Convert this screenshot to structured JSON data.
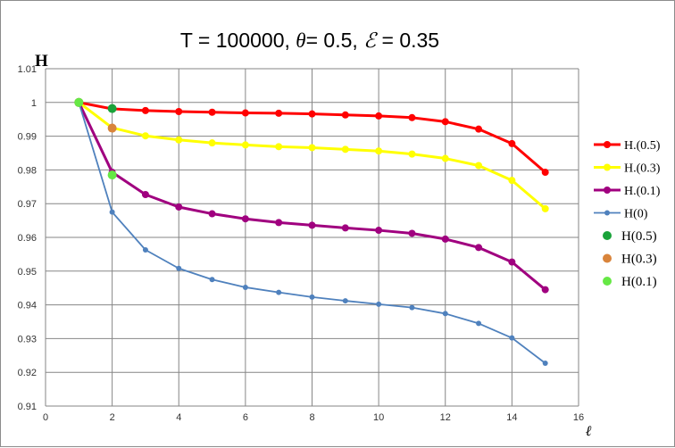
{
  "chart_data": {
    "type": "line",
    "title_parts": {
      "lead": "T = 100000,  ",
      "theta_sym": "θ",
      "theta_val": "= 0.5,  ",
      "eps_sym": "ℰ",
      "eps_val": " = 0.35"
    },
    "ylabel": "H",
    "xlabel": "ℓ",
    "xlim": [
      0,
      16
    ],
    "ylim": [
      0.91,
      1.01
    ],
    "x_ticks": [
      0,
      2,
      4,
      6,
      8,
      10,
      12,
      14,
      16
    ],
    "y_ticks": [
      0.91,
      0.92,
      0.93,
      0.94,
      0.95,
      0.96,
      0.97,
      0.98,
      0.99,
      1,
      1.01
    ],
    "grid": true,
    "legend_position": "right",
    "series": [
      {
        "name": "H.(0.5)",
        "color": "#ff0000",
        "kind": "line",
        "x": [
          1,
          2,
          3,
          4,
          5,
          6,
          7,
          8,
          9,
          10,
          11,
          12,
          13,
          14,
          15
        ],
        "y": [
          1.0,
          0.9981,
          0.9976,
          0.9973,
          0.9971,
          0.9969,
          0.9968,
          0.9966,
          0.9963,
          0.996,
          0.9955,
          0.9943,
          0.9921,
          0.9878,
          0.9793
        ]
      },
      {
        "name": "H.(0.3)",
        "color": "#ffff00",
        "kind": "line",
        "x": [
          1,
          2,
          3,
          4,
          5,
          6,
          7,
          8,
          9,
          10,
          11,
          12,
          13,
          14,
          15
        ],
        "y": [
          1.0,
          0.9925,
          0.9901,
          0.9889,
          0.988,
          0.9874,
          0.9869,
          0.9866,
          0.9861,
          0.9856,
          0.9847,
          0.9834,
          0.9813,
          0.9769,
          0.9685
        ]
      },
      {
        "name": "H.(0.1)",
        "color": "#a0007f",
        "kind": "line",
        "x": [
          1,
          2,
          3,
          4,
          5,
          6,
          7,
          8,
          9,
          10,
          11,
          12,
          13,
          14,
          15
        ],
        "y": [
          1.0,
          0.9793,
          0.9727,
          0.969,
          0.967,
          0.9655,
          0.9644,
          0.9636,
          0.9628,
          0.9621,
          0.9612,
          0.9595,
          0.957,
          0.9527,
          0.9445
        ]
      },
      {
        "name": "H(0)",
        "color": "#4f81bd",
        "kind": "line",
        "x": [
          1,
          2,
          3,
          4,
          5,
          6,
          7,
          8,
          9,
          10,
          11,
          12,
          13,
          14,
          15
        ],
        "y": [
          1.0,
          0.9675,
          0.9563,
          0.9508,
          0.9475,
          0.9452,
          0.9437,
          0.9423,
          0.9412,
          0.9402,
          0.9392,
          0.9374,
          0.9345,
          0.9302,
          0.9227
        ]
      },
      {
        "name": "H(0.5)",
        "color": "#1aa33a",
        "kind": "point",
        "x": [
          1,
          2
        ],
        "y": [
          1.0,
          0.9982
        ]
      },
      {
        "name": "H(0.3)",
        "color": "#d9843b",
        "kind": "point",
        "x": [
          1,
          2
        ],
        "y": [
          1.0,
          0.9924
        ]
      },
      {
        "name": "H(0.1)",
        "color": "#66e845",
        "kind": "point",
        "x": [
          1,
          2
        ],
        "y": [
          1.0,
          0.9785
        ]
      }
    ]
  }
}
